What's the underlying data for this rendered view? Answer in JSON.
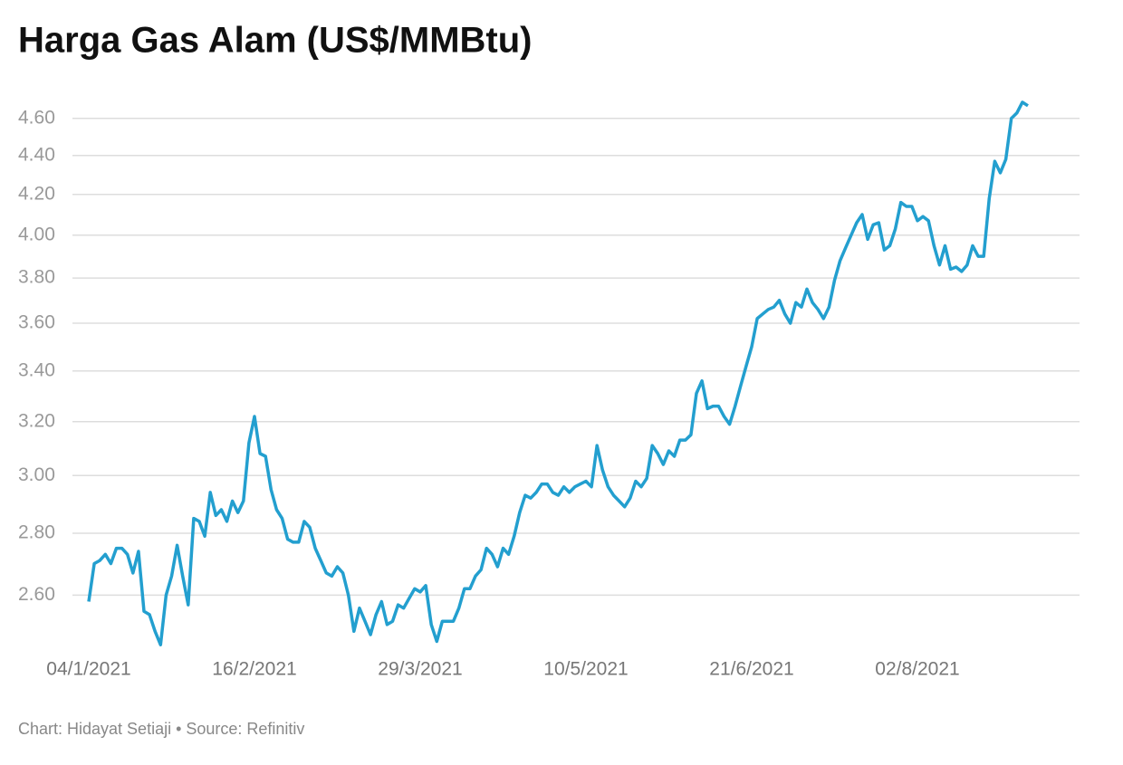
{
  "chart_data": {
    "type": "line",
    "title": "Harga Gas Alam (US$/MMBtu)",
    "footer": "Chart: Hidayat Setiaji • Source: Refinitiv",
    "log_scale": true,
    "grid": true,
    "ylim": [
      2.44,
      4.72
    ],
    "yticks": [
      {
        "value": 2.6,
        "label": "2.60"
      },
      {
        "value": 2.8,
        "label": "2.80"
      },
      {
        "value": 3.0,
        "label": "3.00"
      },
      {
        "value": 3.2,
        "label": "3.20"
      },
      {
        "value": 3.4,
        "label": "3.40"
      },
      {
        "value": 3.6,
        "label": "3.60"
      },
      {
        "value": 3.8,
        "label": "3.80"
      },
      {
        "value": 4.0,
        "label": "4.00"
      },
      {
        "value": 4.2,
        "label": "4.20"
      },
      {
        "value": 4.4,
        "label": "4.40"
      },
      {
        "value": 4.6,
        "label": "4.60"
      }
    ],
    "categories": [
      "04/1/2021",
      null,
      null,
      null,
      null,
      null,
      null,
      null,
      null,
      null,
      null,
      null,
      null,
      null,
      null,
      null,
      null,
      null,
      null,
      null,
      null,
      null,
      null,
      null,
      null,
      null,
      null,
      null,
      null,
      null,
      "16/2/2021",
      null,
      null,
      null,
      null,
      null,
      null,
      null,
      null,
      null,
      null,
      null,
      null,
      null,
      null,
      null,
      null,
      null,
      null,
      null,
      null,
      null,
      null,
      null,
      null,
      null,
      null,
      null,
      null,
      null,
      "29/3/2021",
      null,
      null,
      null,
      null,
      null,
      null,
      null,
      null,
      null,
      null,
      null,
      null,
      null,
      null,
      null,
      null,
      null,
      null,
      null,
      null,
      null,
      null,
      null,
      null,
      null,
      null,
      null,
      null,
      null,
      "10/5/2021",
      null,
      null,
      null,
      null,
      null,
      null,
      null,
      null,
      null,
      null,
      null,
      null,
      null,
      null,
      null,
      null,
      null,
      null,
      null,
      null,
      null,
      null,
      null,
      null,
      null,
      null,
      null,
      null,
      null,
      "21/6/2021",
      null,
      null,
      null,
      null,
      null,
      null,
      null,
      null,
      null,
      null,
      null,
      null,
      null,
      null,
      null,
      null,
      null,
      null,
      null,
      null,
      null,
      null,
      null,
      null,
      null,
      null,
      null,
      null,
      null,
      "02/8/2021",
      null,
      null,
      null,
      null,
      null,
      null,
      null,
      null,
      null,
      null,
      null,
      null,
      null,
      null,
      null,
      null,
      null,
      null,
      null,
      null
    ],
    "series": [
      {
        "color": "#239fcf",
        "values": [
          2.58,
          2.7,
          2.71,
          2.73,
          2.7,
          2.75,
          2.75,
          2.73,
          2.67,
          2.74,
          2.55,
          2.54,
          2.49,
          2.45,
          2.6,
          2.66,
          2.76,
          2.66,
          2.57,
          2.85,
          2.84,
          2.79,
          2.94,
          2.86,
          2.88,
          2.84,
          2.91,
          2.87,
          2.91,
          3.12,
          3.22,
          3.08,
          3.07,
          2.95,
          2.88,
          2.85,
          2.78,
          2.77,
          2.77,
          2.84,
          2.82,
          2.75,
          2.71,
          2.67,
          2.66,
          2.69,
          2.67,
          2.6,
          2.49,
          2.56,
          2.52,
          2.48,
          2.54,
          2.58,
          2.51,
          2.52,
          2.57,
          2.56,
          2.59,
          2.62,
          2.61,
          2.63,
          2.51,
          2.46,
          2.52,
          2.52,
          2.52,
          2.56,
          2.62,
          2.62,
          2.66,
          2.68,
          2.75,
          2.73,
          2.69,
          2.75,
          2.73,
          2.79,
          2.87,
          2.93,
          2.92,
          2.94,
          2.97,
          2.97,
          2.94,
          2.93,
          2.96,
          2.94,
          2.96,
          2.97,
          2.98,
          2.96,
          3.11,
          3.02,
          2.96,
          2.93,
          2.91,
          2.89,
          2.92,
          2.98,
          2.96,
          2.99,
          3.11,
          3.08,
          3.04,
          3.09,
          3.07,
          3.13,
          3.13,
          3.15,
          3.31,
          3.36,
          3.25,
          3.26,
          3.26,
          3.22,
          3.19,
          3.26,
          3.34,
          3.42,
          3.5,
          3.62,
          3.64,
          3.66,
          3.67,
          3.7,
          3.64,
          3.6,
          3.69,
          3.67,
          3.75,
          3.69,
          3.66,
          3.62,
          3.67,
          3.79,
          3.88,
          3.94,
          4.0,
          4.06,
          4.1,
          3.98,
          4.05,
          4.06,
          3.93,
          3.95,
          4.03,
          4.16,
          4.14,
          4.14,
          4.07,
          4.09,
          4.07,
          3.95,
          3.86,
          3.95,
          3.84,
          3.85,
          3.83,
          3.86,
          3.95,
          3.9,
          3.9,
          4.18,
          4.37,
          4.31,
          4.38,
          4.6,
          4.63,
          4.69,
          4.67
        ]
      }
    ]
  }
}
